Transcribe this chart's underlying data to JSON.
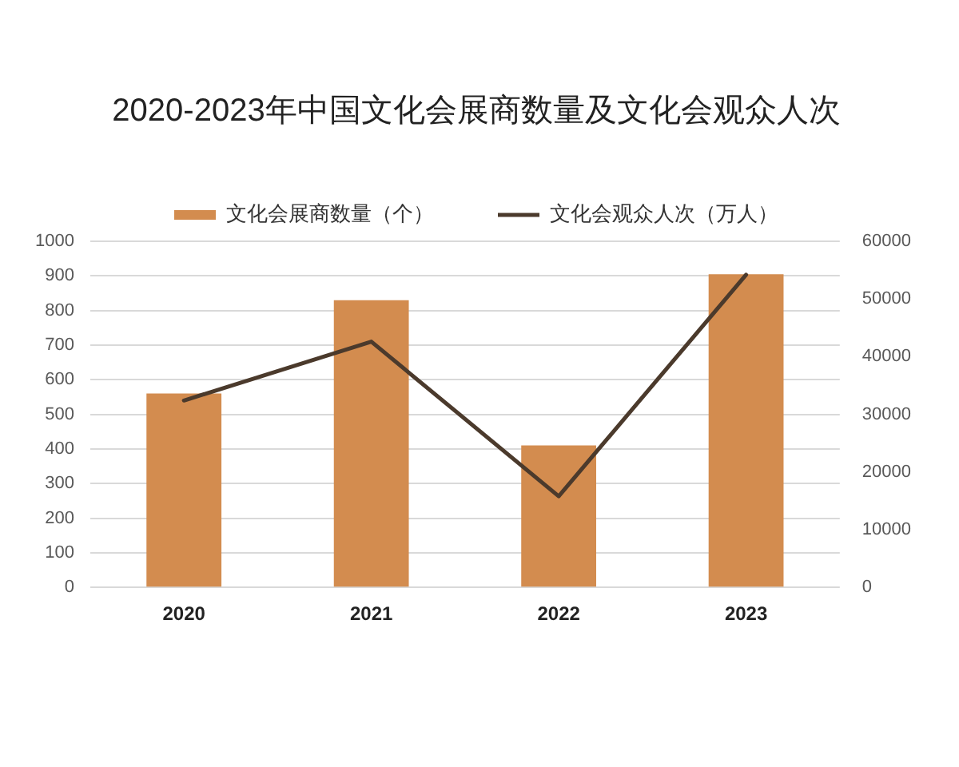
{
  "chart_data": {
    "type": "bar",
    "title": "2020-2023年中国文化会展商数量及文化会观众人次",
    "categories": [
      "2020",
      "2021",
      "2022",
      "2023"
    ],
    "series": [
      {
        "name": "文化会展商数量（个）",
        "color": "#d38c4f",
        "values": [
          560,
          830,
          410,
          905
        ]
      },
      {
        "name": "文化会观众人次（万人）",
        "type": "line",
        "axis": "y2",
        "color": "#4b3a2c",
        "values": [
          32400,
          42600,
          15800,
          54200
        ]
      }
    ],
    "ylim": [
      0,
      1000
    ],
    "yticks": [
      0,
      100,
      200,
      300,
      400,
      500,
      600,
      700,
      800,
      900,
      1000
    ],
    "y2lim": [
      0,
      60000
    ],
    "y2ticks": [
      0,
      10000,
      20000,
      30000,
      40000,
      50000,
      60000
    ],
    "grid": "y",
    "legend": "top",
    "marker": "none",
    "line_style": "solid"
  }
}
